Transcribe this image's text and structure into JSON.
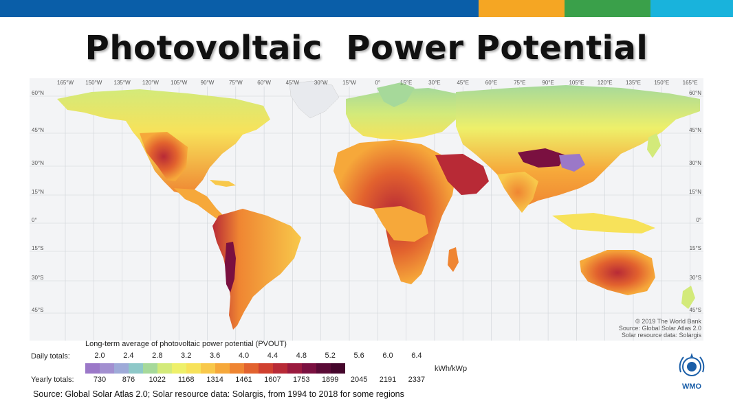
{
  "header": {
    "title": "Photovoltaic  Power Potential",
    "band_colors": [
      "#0a5ea8",
      "#f5a623",
      "#3aa04a",
      "#19b3dc"
    ]
  },
  "map": {
    "lon_labels": [
      "165°W",
      "150°W",
      "135°W",
      "120°W",
      "105°W",
      "90°W",
      "75°W",
      "60°W",
      "45°W",
      "30°W",
      "15°W",
      "0°",
      "15°E",
      "30°E",
      "45°E",
      "60°E",
      "75°E",
      "90°E",
      "105°E",
      "120°E",
      "135°E",
      "150°E",
      "165°E"
    ],
    "lat_labels": [
      "60°N",
      "45°N",
      "30°N",
      "15°N",
      "0°",
      "15°S",
      "30°S",
      "45°S"
    ],
    "credit_lines": [
      "© 2019 The World Bank",
      "Source: Global Solar Atlas 2.0",
      "Solar resource data: Solargis"
    ]
  },
  "legend": {
    "title": "Long-term average of photovoltaic power potential (PVOUT)",
    "daily_label": "Daily totals:",
    "yearly_label": "Yearly totals:",
    "daily_ticks": [
      "2.0",
      "2.4",
      "2.8",
      "3.2",
      "3.6",
      "4.0",
      "4.4",
      "4.8",
      "5.2",
      "5.6",
      "6.0",
      "6.4"
    ],
    "yearly_ticks": [
      "730",
      "876",
      "1022",
      "1168",
      "1314",
      "1461",
      "1607",
      "1753",
      "1899",
      "2045",
      "2191",
      "2337"
    ],
    "unit": "kWh/kWp",
    "colors": [
      "#9b78c8",
      "#a28fd0",
      "#9eaad8",
      "#8ec8c8",
      "#a6d99a",
      "#d3ea7a",
      "#eef06a",
      "#f7e25a",
      "#f8c84a",
      "#f6a83a",
      "#ef8532",
      "#e2622e",
      "#d0402f",
      "#b82a36",
      "#9a1a3e",
      "#7a1040",
      "#5a0a36",
      "#45062c"
    ]
  },
  "footer": {
    "source": "Source: Global Solar Atlas 2.0; Solar resource data: Solargis, from 1994 to 2018 for some regions",
    "logo_text": "WMO"
  }
}
